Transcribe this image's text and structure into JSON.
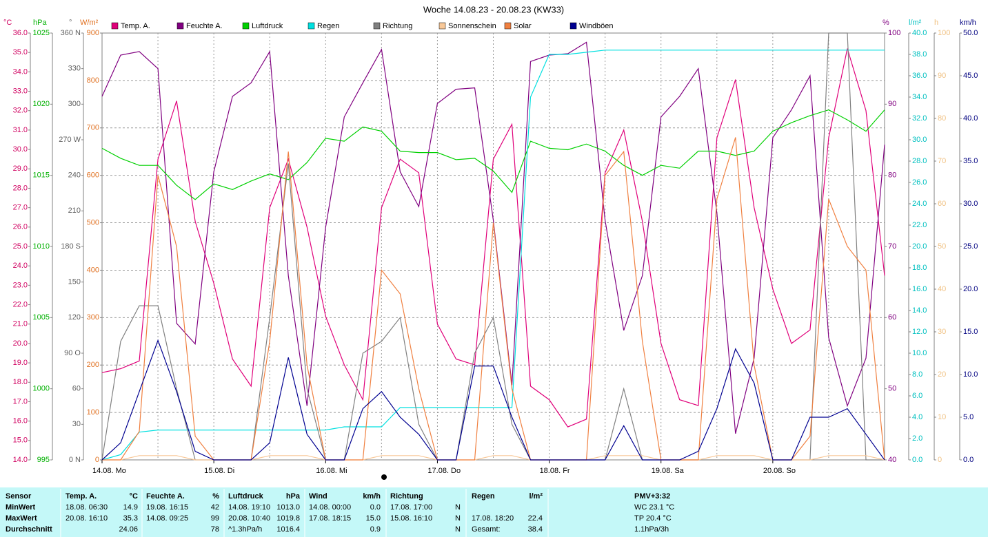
{
  "chart_data": {
    "type": "line",
    "title": "Woche 14.08.23 - 20.08.23 (KW33)",
    "x": [
      0,
      4,
      8,
      12,
      16,
      20,
      24,
      28,
      32,
      36,
      40,
      44,
      48,
      52,
      56,
      60,
      64,
      68,
      72,
      76,
      80,
      84,
      88,
      92,
      96,
      100,
      104,
      108,
      112,
      116,
      120,
      124,
      128,
      132,
      136,
      140,
      144,
      148,
      152,
      156,
      160,
      164,
      168
    ],
    "xlim": [
      0,
      168
    ],
    "xticks": [
      {
        "value": 0,
        "label": "14.08.  Mo"
      },
      {
        "value": 24,
        "label": "15.08.  Di"
      },
      {
        "value": 48,
        "label": "16.08.  Mi"
      },
      {
        "value": 72,
        "label": "17.08.  Do"
      },
      {
        "value": 96,
        "label": "18.08.  Fr"
      },
      {
        "value": 120,
        "label": "19.08.  Sa"
      },
      {
        "value": 144,
        "label": "20.08.  So"
      }
    ],
    "xgrid": [
      12,
      24,
      36,
      48,
      60,
      72,
      84,
      96,
      108,
      120,
      132,
      144,
      156
    ],
    "axes": [
      {
        "unit": "°C",
        "color": "#d00060",
        "lim": [
          14,
          36
        ],
        "ticks": [
          {
            "value": 14,
            "label": "14.0"
          },
          {
            "value": 15,
            "label": "15.0"
          },
          {
            "value": 16,
            "label": "16.0"
          },
          {
            "value": 17,
            "label": "17.0"
          },
          {
            "value": 18,
            "label": "18.0"
          },
          {
            "value": 19,
            "label": "19.0"
          },
          {
            "value": 20,
            "label": "20.0"
          },
          {
            "value": 21,
            "label": "21.0"
          },
          {
            "value": 22,
            "label": "22.0"
          },
          {
            "value": 23,
            "label": "23.0"
          },
          {
            "value": 24,
            "label": "24.0"
          },
          {
            "value": 25,
            "label": "25.0"
          },
          {
            "value": 26,
            "label": "26.0"
          },
          {
            "value": 27,
            "label": "27.0"
          },
          {
            "value": 28,
            "label": "28.0"
          },
          {
            "value": 29,
            "label": "29.0"
          },
          {
            "value": 30,
            "label": "30.0"
          },
          {
            "value": 31,
            "label": "31.0"
          },
          {
            "value": 32,
            "label": "32.0"
          },
          {
            "value": 33,
            "label": "33.0"
          },
          {
            "value": 34,
            "label": "34.0"
          },
          {
            "value": 35,
            "label": "35.0"
          },
          {
            "value": 36,
            "label": "36.0"
          }
        ]
      },
      {
        "unit": "hPa",
        "color": "#00b000",
        "lim": [
          995,
          1025
        ],
        "ticks": [
          995,
          1000,
          1005,
          1010,
          1015,
          1020,
          1025
        ]
      },
      {
        "unit": "°",
        "color": "#606060",
        "lim": [
          0,
          360
        ],
        "ticks": [
          {
            "value": 0,
            "label": "0 N"
          },
          30,
          60,
          {
            "value": 90,
            "label": "90 O"
          },
          120,
          150,
          {
            "value": 180,
            "label": "180 S"
          },
          210,
          240,
          {
            "value": 270,
            "label": "270 W"
          },
          300,
          330,
          {
            "value": 360,
            "label": "360 N"
          }
        ]
      },
      {
        "unit": "W/m²",
        "color": "#e07020",
        "lim": [
          0,
          900
        ],
        "ticks": [
          0,
          100,
          200,
          300,
          400,
          500,
          600,
          700,
          800,
          900
        ],
        "grid": true
      },
      {
        "unit": "%",
        "color": "#800080",
        "lim": [
          40,
          100
        ],
        "ticks": [
          40,
          50,
          60,
          70,
          80,
          90,
          100
        ]
      },
      {
        "unit": "l/m²",
        "color": "#00c0c0",
        "lim": [
          0,
          40
        ],
        "ticks": [
          {
            "value": 0,
            "label": "0.0"
          },
          {
            "value": 2,
            "label": "2.0"
          },
          {
            "value": 4,
            "label": "4.0"
          },
          {
            "value": 6,
            "label": "6.0"
          },
          {
            "value": 8,
            "label": "8.0"
          },
          {
            "value": 10,
            "label": "10.0"
          },
          {
            "value": 12,
            "label": "12.0"
          },
          {
            "value": 14,
            "label": "14.0"
          },
          {
            "value": 16,
            "label": "16.0"
          },
          {
            "value": 18,
            "label": "18.0"
          },
          {
            "value": 20,
            "label": "20.0"
          },
          {
            "value": 22,
            "label": "22.0"
          },
          {
            "value": 24,
            "label": "24.0"
          },
          {
            "value": 26,
            "label": "26.0"
          },
          {
            "value": 28,
            "label": "28.0"
          },
          {
            "value": 30,
            "label": "30.0"
          },
          {
            "value": 32,
            "label": "32.0"
          },
          {
            "value": 34,
            "label": "34.0"
          },
          {
            "value": 36,
            "label": "36.0"
          },
          {
            "value": 38,
            "label": "38.0"
          },
          {
            "value": 40,
            "label": "40.0"
          }
        ]
      },
      {
        "unit": "h",
        "color": "#f0c080",
        "lim": [
          0,
          100
        ],
        "ticks": [
          0,
          10,
          20,
          30,
          40,
          50,
          60,
          70,
          80,
          90,
          100
        ]
      },
      {
        "unit": "km/h",
        "color": "#000080",
        "lim": [
          0,
          50
        ],
        "ticks": [
          {
            "value": 0,
            "label": "0.0"
          },
          {
            "value": 5,
            "label": "5.0"
          },
          {
            "value": 10,
            "label": "10.0"
          },
          {
            "value": 15,
            "label": "15.0"
          },
          {
            "value": 20,
            "label": "20.0"
          },
          {
            "value": 25,
            "label": "25.0"
          },
          {
            "value": 30,
            "label": "30.0"
          },
          {
            "value": 35,
            "label": "35.0"
          },
          {
            "value": 40,
            "label": "40.0"
          },
          {
            "value": 45,
            "label": "45.0"
          },
          {
            "value": 50,
            "label": "50.0"
          }
        ]
      }
    ],
    "series": [
      {
        "name": "Temp. A.",
        "color": "#e0007a",
        "axis": 0,
        "values": [
          18.5,
          18.7,
          19.1,
          29.5,
          32.5,
          26.3,
          23.1,
          19.2,
          17.8,
          27.0,
          29.5,
          26.0,
          21.4,
          18.9,
          17.1,
          27.0,
          29.5,
          28.8,
          21.0,
          19.2,
          18.9,
          29.5,
          31.3,
          17.8,
          17.1,
          15.7,
          16.1,
          28.8,
          31.0,
          26.3,
          20.0,
          17.1,
          16.8,
          30.6,
          33.6,
          27.0,
          22.8,
          20.0,
          20.7,
          30.6,
          35.2,
          32.0,
          23.5
        ]
      },
      {
        "name": "Feuchte A.",
        "color": "#800080",
        "axis": 4,
        "values": [
          91.1,
          96.9,
          97.4,
          95.0,
          59.2,
          56.3,
          80.5,
          91.1,
          93.0,
          97.4,
          65.9,
          47.6,
          72.7,
          88.2,
          93.0,
          97.7,
          80.5,
          75.6,
          90.1,
          92.1,
          92.3,
          73.7,
          50.5,
          96.0,
          96.9,
          97.1,
          98.7,
          73.7,
          58.2,
          65.9,
          88.2,
          91.1,
          95.0,
          74.7,
          43.7,
          54.3,
          85.3,
          89.2,
          94.0,
          57.2,
          47.6,
          54.3,
          84.3
        ]
      },
      {
        "name": "Luftdruck",
        "color": "#00d000",
        "axis": 1,
        "values": [
          1016.9,
          1016.2,
          1015.7,
          1015.7,
          1014.3,
          1013.3,
          1014.4,
          1014.0,
          1014.6,
          1015.1,
          1014.7,
          1015.9,
          1017.6,
          1017.4,
          1018.4,
          1018.1,
          1016.7,
          1016.6,
          1016.6,
          1016.1,
          1016.2,
          1015.3,
          1013.8,
          1017.4,
          1016.9,
          1016.8,
          1017.2,
          1016.7,
          1015.7,
          1015.0,
          1015.7,
          1015.5,
          1016.7,
          1016.7,
          1016.4,
          1016.7,
          1018.1,
          1018.7,
          1019.2,
          1019.6,
          1018.9,
          1018.1,
          1019.6
        ]
      },
      {
        "name": "Regen",
        "color": "#00e0e0",
        "axis": 5,
        "values": [
          0,
          0.5,
          2.6,
          2.8,
          2.8,
          2.8,
          2.8,
          2.8,
          2.8,
          2.8,
          2.8,
          2.8,
          2.8,
          3.1,
          3.1,
          3.1,
          4.9,
          4.9,
          4.9,
          4.9,
          4.9,
          4.9,
          4.9,
          34.0,
          38.0,
          38.0,
          38.2,
          38.4,
          38.4,
          38.4,
          38.4,
          38.4,
          38.4,
          38.4,
          38.4,
          38.4,
          38.4,
          38.4,
          38.4,
          38.4,
          38.4,
          38.4,
          38.4
        ]
      },
      {
        "name": "Richtung",
        "color": "#808080",
        "axis": 2,
        "values": [
          0,
          100,
          130,
          130,
          60,
          0,
          0,
          0,
          0,
          120,
          250,
          60,
          0,
          0,
          90,
          100,
          120,
          30,
          0,
          0,
          90,
          120,
          30,
          0,
          0,
          0,
          0,
          0,
          60,
          0,
          0,
          0,
          0,
          0,
          0,
          0,
          0,
          0,
          0,
          360,
          360,
          0,
          0
        ]
      },
      {
        "name": "Sonnenschein",
        "color": "#f8c898",
        "axis": 6,
        "values": [
          0,
          0,
          1,
          1,
          1,
          0,
          0,
          0,
          0,
          1,
          1,
          1,
          0,
          0,
          0,
          1,
          1,
          1,
          0,
          0,
          0,
          1,
          1,
          0,
          0,
          0,
          0,
          1,
          1,
          1,
          0,
          0,
          0,
          1,
          1,
          1,
          0,
          0,
          0,
          1,
          1,
          1,
          0
        ]
      },
      {
        "name": "Solar",
        "color": "#f08040",
        "axis": 3,
        "values": [
          0,
          0,
          60,
          600,
          450,
          50,
          0,
          0,
          0,
          250,
          650,
          200,
          0,
          0,
          0,
          400,
          350,
          150,
          0,
          0,
          0,
          500,
          150,
          0,
          0,
          0,
          0,
          600,
          650,
          250,
          0,
          0,
          0,
          550,
          680,
          200,
          0,
          0,
          50,
          550,
          450,
          400,
          0
        ]
      },
      {
        "name": "Windböen",
        "color": "#000090",
        "axis": 7,
        "values": [
          0,
          2,
          8,
          14,
          8,
          1,
          0,
          0,
          0,
          2,
          12,
          3,
          0,
          0,
          6,
          8,
          5,
          3,
          0,
          0,
          11,
          11,
          5,
          0,
          0,
          0,
          0,
          0,
          4,
          0,
          0,
          0,
          1,
          6,
          13,
          9,
          0,
          0,
          5,
          5,
          6,
          3,
          0
        ]
      }
    ]
  },
  "table": {
    "header": {
      "sensor": "Sensor",
      "temp": "Temp. A.",
      "temp_unit": "°C",
      "hum": "Feuchte A.",
      "hum_unit": "%",
      "press": "Luftdruck",
      "press_unit": "hPa",
      "wind": "Wind",
      "wind_unit": "km/h",
      "dir": "Richtung",
      "rain": "Regen",
      "rain_unit": "l/m²",
      "pmv": "PMV+3:32"
    },
    "rows": [
      {
        "label": "MinWert",
        "temp_time": "18.08.  06:30",
        "temp": "14.9",
        "hum_time": "19.08.  16:15",
        "hum": "42",
        "press_time": "14.08.  19:10",
        "press": "1013.0",
        "wind_time": "14.08.  00:00",
        "wind": "0.0",
        "dir_time": "17.08.  17:00",
        "dir": "N",
        "pmv": "WC 23.1 °C"
      },
      {
        "label": "MaxWert",
        "temp_time": "20.08.  16:10",
        "temp": "35.3",
        "hum_time": "14.08.  09:25",
        "hum": "99",
        "press_time": "20.08.  10:40",
        "press": "1019.8",
        "wind_time": "17.08.  18:15",
        "wind": "15.0",
        "dir_time": "15.08.  16:10",
        "dir": "N",
        "rain_time": "17.08.  18:20",
        "rain": "22.4",
        "pmv": "TP 20.4 °C"
      },
      {
        "label": "Durchschnitt",
        "temp": "24.06",
        "hum": "78",
        "press_time": "^1.3hPa/h",
        "press": "1016.4",
        "wind": "0.9",
        "dir": "N",
        "rain_time": "Gesamt:",
        "rain": "38.4",
        "pmv": "1.1hPa/3h"
      }
    ]
  }
}
